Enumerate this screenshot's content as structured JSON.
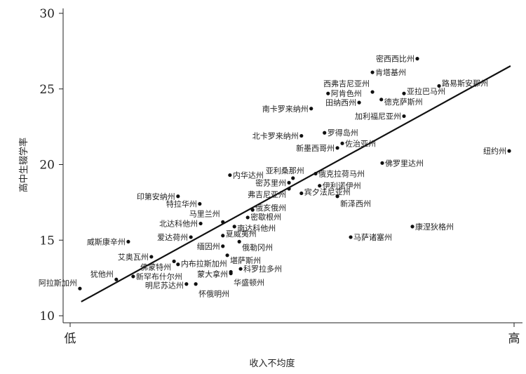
{
  "chart_data": {
    "type": "scatter",
    "title": "",
    "xlabel": "收入不均度",
    "ylabel": "高中生辍学率",
    "x_tick_labels": [
      "低",
      "高"
    ],
    "xlim": [
      0,
      1
    ],
    "ylim": [
      10,
      30
    ],
    "y_ticks": [
      10,
      15,
      20,
      25,
      30
    ],
    "grid": false,
    "point_color": "#111111",
    "fit_line": {
      "x": [
        0.025,
        0.992
      ],
      "y": [
        10.93,
        26.52
      ]
    },
    "points": [
      {
        "label": "密西西比州",
        "x": 0.782,
        "y": 27.0
      },
      {
        "label": "肯塔基州",
        "x": 0.681,
        "y": 26.1
      },
      {
        "label": "西弗吉尼亚州",
        "x": 0.681,
        "y": 24.8
      },
      {
        "label": "路易斯安那州",
        "x": 0.831,
        "y": 25.2
      },
      {
        "label": "阿肯色州",
        "x": 0.581,
        "y": 24.7
      },
      {
        "label": "亚拉巴马州",
        "x": 0.752,
        "y": 24.7
      },
      {
        "label": "德克萨斯州",
        "x": 0.701,
        "y": 24.3
      },
      {
        "label": "田纳西州",
        "x": 0.651,
        "y": 24.1
      },
      {
        "label": "南卡罗来纳州",
        "x": 0.543,
        "y": 23.7
      },
      {
        "label": "加利福尼亚州",
        "x": 0.752,
        "y": 23.2
      },
      {
        "label": "北卡罗来纳州",
        "x": 0.521,
        "y": 21.9
      },
      {
        "label": "罗得岛州",
        "x": 0.573,
        "y": 22.1
      },
      {
        "label": "佐治亚州",
        "x": 0.613,
        "y": 21.4
      },
      {
        "label": "新墨西哥州",
        "x": 0.602,
        "y": 21.1
      },
      {
        "label": "纽约州",
        "x": 0.989,
        "y": 20.9
      },
      {
        "label": "佛罗里达州",
        "x": 0.703,
        "y": 20.1
      },
      {
        "label": "内华达州",
        "x": 0.36,
        "y": 19.3
      },
      {
        "label": "亚利桑那州",
        "x": 0.502,
        "y": 19.1
      },
      {
        "label": "俄克拉荷马州",
        "x": 0.553,
        "y": 19.4
      },
      {
        "label": "密苏里州",
        "x": 0.493,
        "y": 18.8
      },
      {
        "label": "伊利诺伊州",
        "x": 0.562,
        "y": 18.6
      },
      {
        "label": "弗吉尼亚州",
        "x": 0.493,
        "y": 18.4
      },
      {
        "label": "宾夕法尼亚州",
        "x": 0.521,
        "y": 18.1
      },
      {
        "label": "新泽西州",
        "x": 0.602,
        "y": 17.9
      },
      {
        "label": "印第安纳州",
        "x": 0.243,
        "y": 17.9
      },
      {
        "label": "特拉华州",
        "x": 0.292,
        "y": 17.4
      },
      {
        "label": "俄亥俄州",
        "x": 0.411,
        "y": 17.0
      },
      {
        "label": "马里兰州",
        "x": 0.344,
        "y": 16.2
      },
      {
        "label": "密歇根州",
        "x": 0.4,
        "y": 16.5
      },
      {
        "label": "南达科他州",
        "x": 0.37,
        "y": 15.9
      },
      {
        "label": "北达科他州",
        "x": 0.294,
        "y": 16.1
      },
      {
        "label": "爱达荷州",
        "x": 0.272,
        "y": 15.2
      },
      {
        "label": "夏威夷州",
        "x": 0.344,
        "y": 15.3
      },
      {
        "label": "俄勒冈州",
        "x": 0.381,
        "y": 14.9
      },
      {
        "label": "缅因州",
        "x": 0.344,
        "y": 14.6
      },
      {
        "label": "堪萨斯州",
        "x": 0.354,
        "y": 14.0
      },
      {
        "label": "威斯康辛州",
        "x": 0.131,
        "y": 14.9
      },
      {
        "label": "艾奥瓦州",
        "x": 0.183,
        "y": 13.9
      },
      {
        "label": "佛蒙特州",
        "x": 0.234,
        "y": 13.6
      },
      {
        "label": "内布拉斯加州",
        "x": 0.243,
        "y": 13.4
      },
      {
        "label": "蒙大拿州",
        "x": 0.362,
        "y": 12.9
      },
      {
        "label": "华盛顿州",
        "x": 0.362,
        "y": 12.8
      },
      {
        "label": "科罗拉多州",
        "x": 0.384,
        "y": 13.1
      },
      {
        "label": "犹他州",
        "x": 0.104,
        "y": 12.4
      },
      {
        "label": "新罕布什尔州",
        "x": 0.142,
        "y": 12.6
      },
      {
        "label": "明尼苏达州",
        "x": 0.262,
        "y": 12.1
      },
      {
        "label": "怀俄明州",
        "x": 0.283,
        "y": 12.1
      },
      {
        "label": "阿拉斯加州",
        "x": 0.022,
        "y": 11.8
      },
      {
        "label": "康涅狄格州",
        "x": 0.771,
        "y": 15.9
      },
      {
        "label": "马萨诸塞州",
        "x": 0.632,
        "y": 15.2
      }
    ]
  }
}
